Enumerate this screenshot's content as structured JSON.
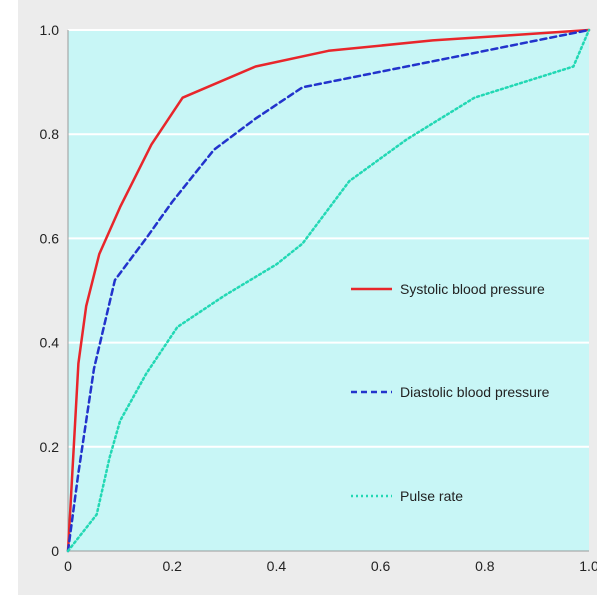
{
  "chart_data": {
    "type": "line",
    "xlim": [
      0,
      1
    ],
    "ylim": [
      0,
      1
    ],
    "xticks": [
      "0",
      "0.2",
      "0.4",
      "0.6",
      "0.8",
      "1.0"
    ],
    "yticks": [
      "0",
      "0.2",
      "0.4",
      "0.6",
      "0.8",
      "1.0"
    ],
    "grid": "horizontal",
    "legend_position": "right",
    "series": [
      {
        "name": "Systolic blood pressure",
        "color": "#e8262b",
        "dash": "solid",
        "x": [
          0,
          0.02,
          0.035,
          0.06,
          0.1,
          0.16,
          0.22,
          0.36,
          0.5,
          0.7,
          0.85,
          1.0
        ],
        "y": [
          0,
          0.36,
          0.47,
          0.57,
          0.66,
          0.78,
          0.87,
          0.93,
          0.96,
          0.98,
          0.99,
          1.0
        ]
      },
      {
        "name": "Diastolic blood pressure",
        "color": "#2233cc",
        "dash": "dashed",
        "x": [
          0,
          0.02,
          0.05,
          0.09,
          0.15,
          0.2,
          0.28,
          0.36,
          0.45,
          0.6,
          0.75,
          0.9,
          1.0
        ],
        "y": [
          0,
          0.15,
          0.35,
          0.52,
          0.6,
          0.67,
          0.77,
          0.83,
          0.89,
          0.92,
          0.95,
          0.98,
          1.0
        ]
      },
      {
        "name": "Pulse rate",
        "color": "#22d8b4",
        "dash": "dotted",
        "x": [
          0,
          0.055,
          0.08,
          0.1,
          0.15,
          0.21,
          0.3,
          0.4,
          0.45,
          0.54,
          0.65,
          0.78,
          0.97,
          1.0
        ],
        "y": [
          0,
          0.07,
          0.18,
          0.25,
          0.34,
          0.43,
          0.49,
          0.55,
          0.59,
          0.71,
          0.79,
          0.87,
          0.93,
          1.0
        ]
      }
    ]
  }
}
